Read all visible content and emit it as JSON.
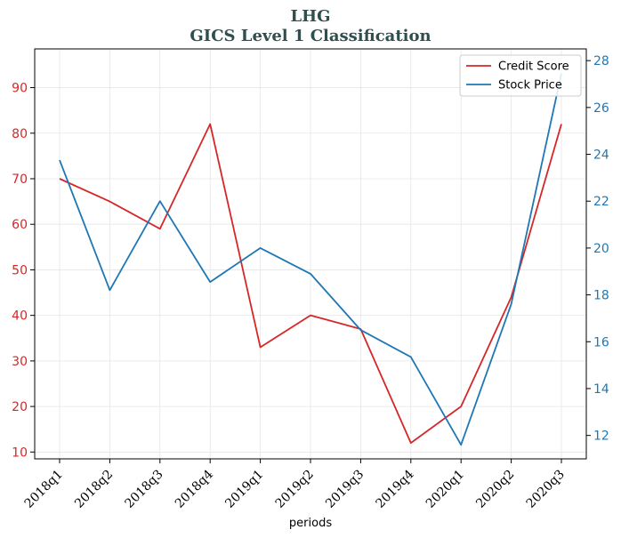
{
  "chart_data": {
    "type": "line",
    "title": "LHG",
    "subtitle": "GICS Level 1 Classification",
    "xlabel": "periods",
    "categories": [
      "2018q1",
      "2018q2",
      "2018q3",
      "2018q4",
      "2019q1",
      "2019q2",
      "2019q3",
      "2019q4",
      "2020q1",
      "2020q2",
      "2020q3"
    ],
    "series": [
      {
        "name": "Credit Score",
        "axis": "left",
        "color": "#d62728",
        "values": [
          70,
          65,
          59,
          82,
          33,
          40,
          37,
          12,
          20,
          44,
          82
        ]
      },
      {
        "name": "Stock Price",
        "axis": "right",
        "color": "#1f77b4",
        "values": [
          23.75,
          18.2,
          22.0,
          18.55,
          20.0,
          18.9,
          16.5,
          15.35,
          11.6,
          17.6,
          27.45
        ]
      }
    ],
    "y_left": {
      "ylim": [
        8.5,
        98.5
      ],
      "ticks": [
        "10",
        "20",
        "30",
        "40",
        "50",
        "60",
        "70",
        "80",
        "90"
      ],
      "tick_color": "#d62728"
    },
    "y_right": {
      "ylim": [
        11.0,
        28.5
      ],
      "ticks": [
        "12",
        "14",
        "16",
        "18",
        "20",
        "22",
        "24",
        "26",
        "28"
      ],
      "tick_color": "#1f77b4"
    },
    "grid": true,
    "legend_position": "top-right"
  }
}
